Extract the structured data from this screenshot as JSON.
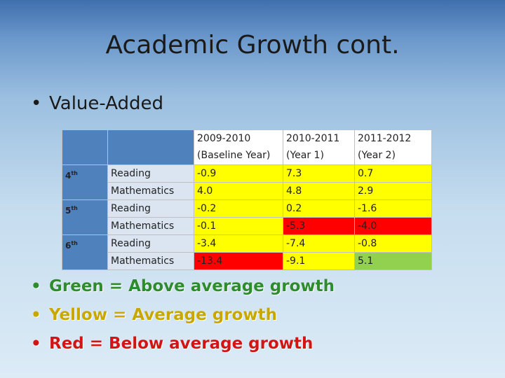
{
  "title": "Academic Growth cont.",
  "bullet": "Value-Added",
  "bullet_symbol": "•",
  "table": {
    "header": [
      "",
      "",
      "2009-2010\n(Baseline Year)",
      "2010-2011\n(Year 1)",
      "2011-2012\n(Year 2)"
    ],
    "header_lines": [
      [
        "2009-2010",
        "(Baseline Year)"
      ],
      [
        "2010-2011",
        "(Year 1)"
      ],
      [
        "2011-2012",
        "(Year 2)"
      ]
    ],
    "grades": [
      {
        "num": "4",
        "suffix": "th"
      },
      {
        "num": "5",
        "suffix": "th"
      },
      {
        "num": "6",
        "suffix": "th"
      }
    ],
    "rows": [
      {
        "subject": "Reading",
        "values": [
          "-0.9",
          "7.3",
          "0.7"
        ],
        "colors": [
          "yellow",
          "yellow",
          "yellow"
        ]
      },
      {
        "subject": "Mathematics",
        "values": [
          "4.0",
          "4.8",
          "2.9"
        ],
        "colors": [
          "yellow",
          "yellow",
          "yellow"
        ]
      },
      {
        "subject": "Reading",
        "values": [
          "-0.2",
          "0.2",
          "-1.6"
        ],
        "colors": [
          "yellow",
          "yellow",
          "yellow"
        ]
      },
      {
        "subject": "Mathematics",
        "values": [
          "-0.1",
          "-5.3",
          "-4.0"
        ],
        "colors": [
          "yellow",
          "red",
          "red"
        ]
      },
      {
        "subject": "Reading",
        "values": [
          "-3.4",
          "-7.4",
          "-0.8"
        ],
        "colors": [
          "yellow",
          "yellow",
          "yellow"
        ]
      },
      {
        "subject": "Mathematics",
        "values": [
          "-13.4",
          "-9.1",
          "5.1"
        ],
        "colors": [
          "red",
          "yellow",
          "green"
        ]
      }
    ]
  },
  "legend": [
    {
      "text": "Green = Above average growth",
      "color": "#2e8b2e"
    },
    {
      "text": "Yellow = Average growth",
      "color": "#c8a800"
    },
    {
      "text": "Red = Below average growth",
      "color": "#d21414"
    }
  ]
}
